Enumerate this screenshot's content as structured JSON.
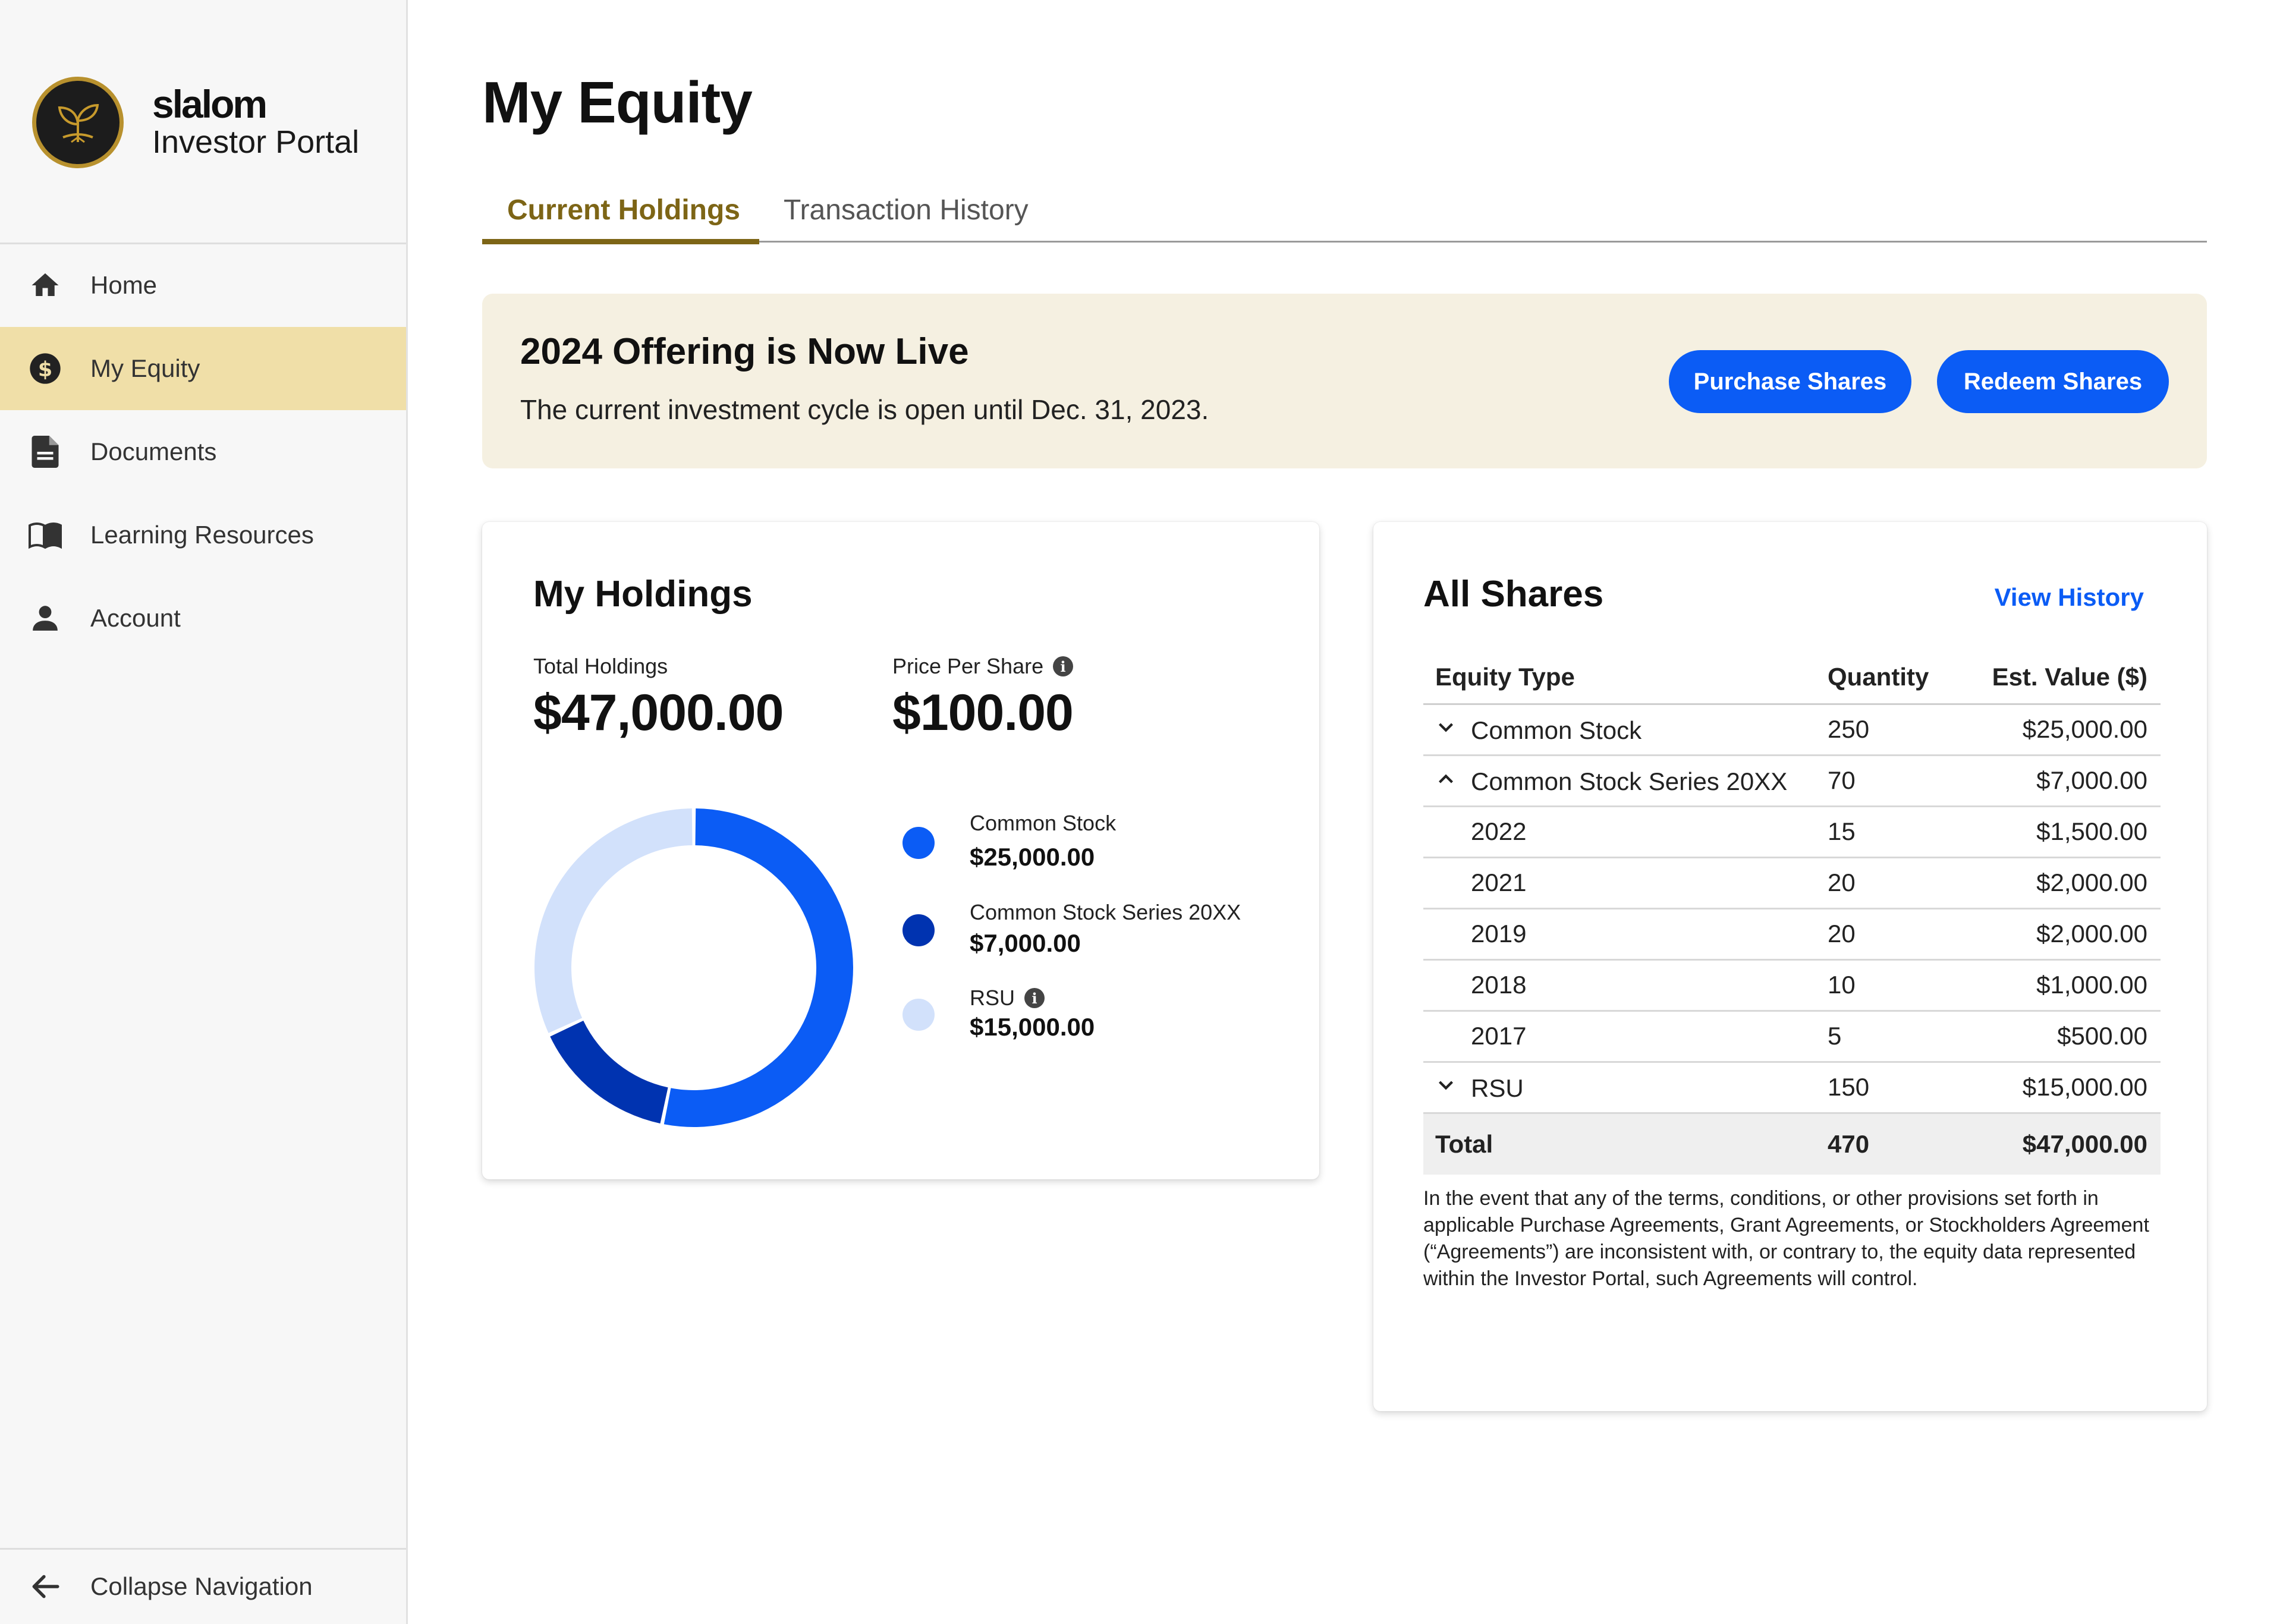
{
  "brand": {
    "name": "slalom",
    "subtitle": "Investor Portal"
  },
  "nav": {
    "items": [
      {
        "label": "Home",
        "icon": "home-icon"
      },
      {
        "label": "My Equity",
        "icon": "dollar-circle-icon",
        "active": true
      },
      {
        "label": "Documents",
        "icon": "document-icon"
      },
      {
        "label": "Learning Resources",
        "icon": "book-icon"
      },
      {
        "label": "Account",
        "icon": "person-icon"
      }
    ],
    "collapse_label": "Collapse Navigation"
  },
  "page": {
    "title": "My Equity"
  },
  "tabs": [
    {
      "label": "Current Holdings",
      "active": true
    },
    {
      "label": "Transaction History",
      "active": false
    }
  ],
  "banner": {
    "title": "2024 Offering is Now Live",
    "text": "The current investment cycle is open until Dec. 31, 2023.",
    "purchase_label": "Purchase Shares",
    "redeem_label": "Redeem Shares"
  },
  "holdings": {
    "title": "My Holdings",
    "total_label": "Total Holdings",
    "total_value": "$47,000.00",
    "price_label": "Price Per Share",
    "price_value": "$100.00",
    "legend": [
      {
        "name": "Common Stock",
        "value": "$25,000.00",
        "color": "#0b5cf5"
      },
      {
        "name": "Common Stock Series 20XX",
        "value": "$7,000.00",
        "color": "#0033b0"
      },
      {
        "name": "RSU",
        "value": "$15,000.00",
        "color": "#d2e1fb"
      }
    ]
  },
  "chart_data": {
    "type": "pie",
    "categories": [
      "Common Stock",
      "Common Stock Series 20XX",
      "RSU"
    ],
    "values": [
      25000,
      7000,
      15000
    ],
    "colors": [
      "#0b5cf5",
      "#0033b0",
      "#d2e1fb"
    ]
  },
  "shares": {
    "title": "All Shares",
    "view_history_label": "View History",
    "headers": {
      "type": "Equity Type",
      "quantity": "Quantity",
      "value": "Est. Value ($)"
    },
    "rows": [
      {
        "label": "Common Stock",
        "quantity": "250",
        "value": "$25,000.00",
        "chevron": "down"
      },
      {
        "label": "Common Stock Series 20XX",
        "quantity": "70",
        "value": "$7,000.00",
        "chevron": "up"
      },
      {
        "label": "2022",
        "quantity": "15",
        "value": "$1,500.00"
      },
      {
        "label": "2021",
        "quantity": "20",
        "value": "$2,000.00"
      },
      {
        "label": "2019",
        "quantity": "20",
        "value": "$2,000.00"
      },
      {
        "label": "2018",
        "quantity": "10",
        "value": "$1,000.00"
      },
      {
        "label": "2017",
        "quantity": "5",
        "value": "$500.00"
      },
      {
        "label": "RSU",
        "quantity": "150",
        "value": "$15,000.00",
        "chevron": "down"
      }
    ],
    "total": {
      "label": "Total",
      "quantity": "470",
      "value": "$47,000.00"
    },
    "disclaimer": "In the event that any of the terms, conditions, or other provisions set forth in applicable Purchase Agreements, Grant Agreements, or Stockholders Agreement (“Agreements”) are inconsistent with, or contrary to, the equity data represented within the Investor Portal, such Agreements will control."
  }
}
